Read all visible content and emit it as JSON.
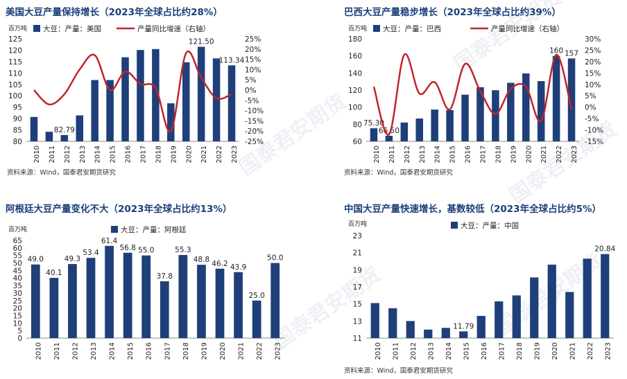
{
  "watermark": "国泰君安期货",
  "chart_data": [
    {
      "type": "bar+line",
      "title": "美国大豆产量保持增长（2023年全球占比约28%）",
      "unit_label": "百万吨",
      "source": "资料来源：Wind，国泰君安期货研究",
      "categories": [
        "2010",
        "2011",
        "2012",
        "2013",
        "2014",
        "2015",
        "2016",
        "2017",
        "2018",
        "2019",
        "2020",
        "2021",
        "2022",
        "2023"
      ],
      "series": [
        {
          "name": "大豆：产量：美国",
          "kind": "bar",
          "color": "#1f3f7a",
          "values": [
            90.7,
            84.2,
            82.79,
            91.4,
            106.9,
            106.9,
            116.9,
            120.1,
            120.5,
            96.7,
            114.7,
            121.5,
            116.4,
            113.34
          ]
        },
        {
          "name": "产量同比增速（右轴）",
          "kind": "line",
          "color": "#c0242c",
          "values": [
            0,
            -7,
            -2,
            10,
            17,
            0,
            9,
            3,
            1,
            -20,
            18,
            6,
            -4,
            -2
          ]
        }
      ],
      "data_labels": [
        {
          "index": 2,
          "text": "82.79"
        },
        {
          "index": 11,
          "text": "121.50"
        },
        {
          "index": 13,
          "text": "113.34"
        }
      ],
      "ylim": [
        80,
        125
      ],
      "yticks": [
        80,
        85,
        90,
        95,
        100,
        105,
        110,
        115,
        120,
        125
      ],
      "y2lim": [
        -25,
        25
      ],
      "y2ticks": [
        "-25%",
        "-20%",
        "-15%",
        "-10%",
        "-5%",
        "0%",
        "5%",
        "10%",
        "15%",
        "20%",
        "25%"
      ]
    },
    {
      "type": "bar+line",
      "title": "巴西大豆产量稳步增长（2023年全球占比约39%）",
      "unit_label": "百万吨",
      "source": "资料来源：Wind，国泰君安期货研究",
      "categories": [
        "2010",
        "2011",
        "2012",
        "2013",
        "2014",
        "2015",
        "2016",
        "2017",
        "2018",
        "2019",
        "2020",
        "2021",
        "2022",
        "2023"
      ],
      "series": [
        {
          "name": "大豆：产量：巴西",
          "kind": "bar",
          "color": "#1f3f7a",
          "values": [
            75.3,
            66.5,
            82,
            86.7,
            97.2,
            96.5,
            114.6,
            123.4,
            119.8,
            128.5,
            139.5,
            130.5,
            160,
            157
          ]
        },
        {
          "name": "产量同比增速（右轴）",
          "kind": "line",
          "color": "#c0242c",
          "values": [
            9,
            -12,
            23,
            6,
            11,
            -1,
            19,
            7,
            -3,
            8,
            9,
            -6,
            23,
            -1
          ]
        }
      ],
      "data_labels": [
        {
          "index": 0,
          "text": "75.30"
        },
        {
          "index": 1,
          "text": "66.50"
        },
        {
          "index": 12,
          "text": "160"
        },
        {
          "index": 13,
          "text": "157"
        }
      ],
      "ylim": [
        60,
        180
      ],
      "yticks": [
        60,
        80,
        100,
        120,
        140,
        160,
        180
      ],
      "y2lim": [
        -15,
        30
      ],
      "y2ticks": [
        "-15%",
        "-10%",
        "-5%",
        "0%",
        "5%",
        "10%",
        "15%",
        "20%",
        "25%",
        "30%"
      ]
    },
    {
      "type": "bar",
      "title": "阿根廷大豆产量变化不大（2023年全球占比约13%）",
      "unit_label": "百万吨",
      "source": "",
      "categories": [
        "2010",
        "2011",
        "2012",
        "2013",
        "2014",
        "2015",
        "2016",
        "2017",
        "2018",
        "2019",
        "2020",
        "2021",
        "2022",
        "2023"
      ],
      "series": [
        {
          "name": "大豆：产量：阿根廷",
          "kind": "bar",
          "color": "#1f3f7a",
          "values": [
            49.0,
            40.1,
            49.3,
            53.4,
            61.4,
            56.8,
            55.0,
            37.8,
            55.3,
            48.8,
            46.2,
            43.9,
            25.0,
            50.0
          ]
        }
      ],
      "data_labels_all": [
        "49.0",
        "40.1",
        "49.3",
        "53.4",
        "61.4",
        "56.8",
        "55.0",
        "37.8",
        "55.3",
        "48.8",
        "46.2",
        "43.9",
        "25.0",
        "50.0"
      ],
      "ylim": [
        0,
        65
      ],
      "yticks": [
        0,
        5,
        10,
        15,
        20,
        25,
        30,
        35,
        40,
        45,
        50,
        55,
        60,
        65
      ]
    },
    {
      "type": "bar",
      "title": "中国大豆产量快速增长，基数较低（2023年全球占比约5%）",
      "unit_label": "百万吨",
      "source": "资料来源：Wind，国泰君安期货研究",
      "categories": [
        "2010",
        "2011",
        "2012",
        "2013",
        "2014",
        "2015",
        "2016",
        "2017",
        "2018",
        "2019",
        "2020",
        "2021",
        "2022",
        "2023"
      ],
      "series": [
        {
          "name": "大豆：产量：中国",
          "kind": "bar",
          "color": "#1f3f7a",
          "values": [
            15.1,
            14.5,
            13.0,
            12.0,
            12.2,
            11.79,
            13.6,
            15.3,
            16.0,
            18.1,
            19.6,
            16.4,
            20.3,
            20.84
          ]
        }
      ],
      "data_labels": [
        {
          "index": 5,
          "text": "11.79"
        },
        {
          "index": 13,
          "text": "20.84"
        }
      ],
      "ylim": [
        11,
        23
      ],
      "yticks": [
        11,
        13,
        15,
        17,
        19,
        21,
        23
      ]
    }
  ]
}
